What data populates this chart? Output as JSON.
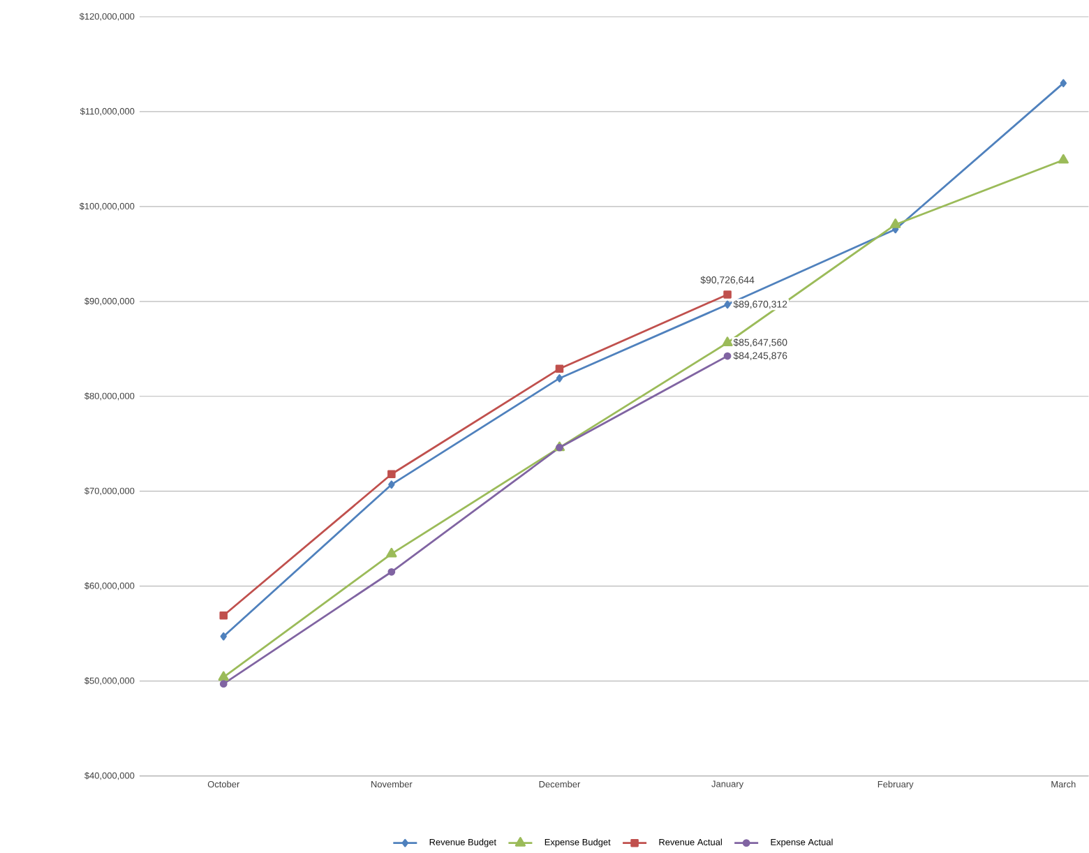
{
  "chart_data": {
    "type": "line",
    "categories": [
      "October",
      "November",
      "December",
      "January",
      "February",
      "March"
    ],
    "series": [
      {
        "name": "Revenue Budget",
        "color": "#4f81bd",
        "marker": "diamond",
        "values": [
          54700000,
          70700000,
          81900000,
          89670312,
          97600000,
          113000000
        ],
        "value_labels": [
          null,
          null,
          null,
          "$89,670,312",
          null,
          null
        ]
      },
      {
        "name": "Expense Budget",
        "color": "#9bbb59",
        "marker": "triangle",
        "values": [
          50400000,
          63400000,
          74600000,
          85647560,
          98100000,
          104900000
        ],
        "value_labels": [
          null,
          null,
          null,
          "$85,647,560",
          null,
          null
        ]
      },
      {
        "name": "Revenue Actual",
        "color": "#c0504d",
        "marker": "square",
        "values": [
          56900000,
          71800000,
          82900000,
          90726644,
          null,
          null
        ],
        "value_labels": [
          null,
          null,
          null,
          "$90,726,644",
          null,
          null
        ]
      },
      {
        "name": "Expense Actual",
        "color": "#8064a2",
        "marker": "circle",
        "values": [
          49700000,
          61500000,
          74600000,
          84245876,
          null,
          null
        ],
        "value_labels": [
          null,
          null,
          null,
          "$84,245,876",
          null,
          null
        ]
      }
    ],
    "ylim": [
      40000000,
      120000000
    ],
    "yticks": [
      {
        "value": 40000000,
        "label": "$40,000,000"
      },
      {
        "value": 50000000,
        "label": "$50,000,000"
      },
      {
        "value": 60000000,
        "label": "$60,000,000"
      },
      {
        "value": 70000000,
        "label": "$70,000,000"
      },
      {
        "value": 80000000,
        "label": "$80,000,000"
      },
      {
        "value": 90000000,
        "label": "$90,000,000"
      },
      {
        "value": 100000000,
        "label": "$100,000,000"
      },
      {
        "value": 110000000,
        "label": "$110,000,000"
      },
      {
        "value": 120000000,
        "label": "$120,000,000"
      }
    ],
    "grid": "y",
    "legend": "bottom"
  }
}
